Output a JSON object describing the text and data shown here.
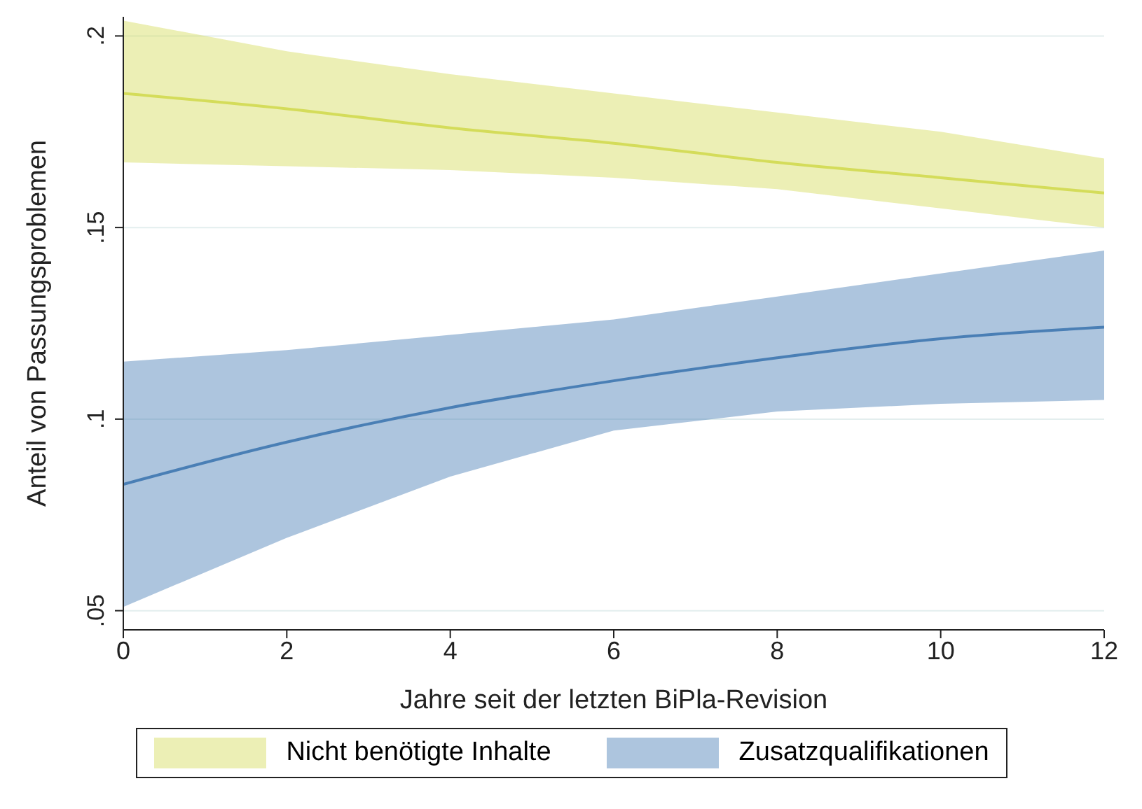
{
  "chart_data": {
    "type": "line",
    "xlabel": "Jahre seit der letzten BiPla-Revision",
    "ylabel": "Anteil von Passungsproblemen",
    "x": [
      0,
      2,
      4,
      6,
      8,
      10,
      12
    ],
    "series": [
      {
        "name": "Nicht benötigte Inhalte",
        "color": "#d4dc5a",
        "values": [
          0.185,
          0.181,
          0.176,
          0.172,
          0.167,
          0.163,
          0.159
        ],
        "lower": [
          0.167,
          0.166,
          0.165,
          0.163,
          0.16,
          0.155,
          0.15
        ],
        "upper": [
          0.204,
          0.196,
          0.19,
          0.185,
          0.18,
          0.175,
          0.168
        ]
      },
      {
        "name": "Zusatzqualifikationen",
        "color": "#4a7fb5",
        "values": [
          0.083,
          0.094,
          0.103,
          0.11,
          0.116,
          0.121,
          0.124
        ],
        "lower": [
          0.051,
          0.069,
          0.085,
          0.097,
          0.102,
          0.104,
          0.105
        ],
        "upper": [
          0.115,
          0.118,
          0.122,
          0.126,
          0.132,
          0.138,
          0.144
        ]
      }
    ],
    "xlim": [
      0,
      12
    ],
    "xticks": [
      0,
      2,
      4,
      6,
      8,
      10,
      12
    ],
    "ylim": [
      0.045,
      0.205
    ],
    "yticks": [
      {
        "value": 0.05,
        "label": ".05"
      },
      {
        "value": 0.1,
        "label": ".1"
      },
      {
        "value": 0.15,
        "label": ".15"
      },
      {
        "value": 0.2,
        "label": ".2"
      }
    ],
    "grid": "y",
    "legend": "bottom",
    "marker": "none",
    "line_style": "solid"
  }
}
